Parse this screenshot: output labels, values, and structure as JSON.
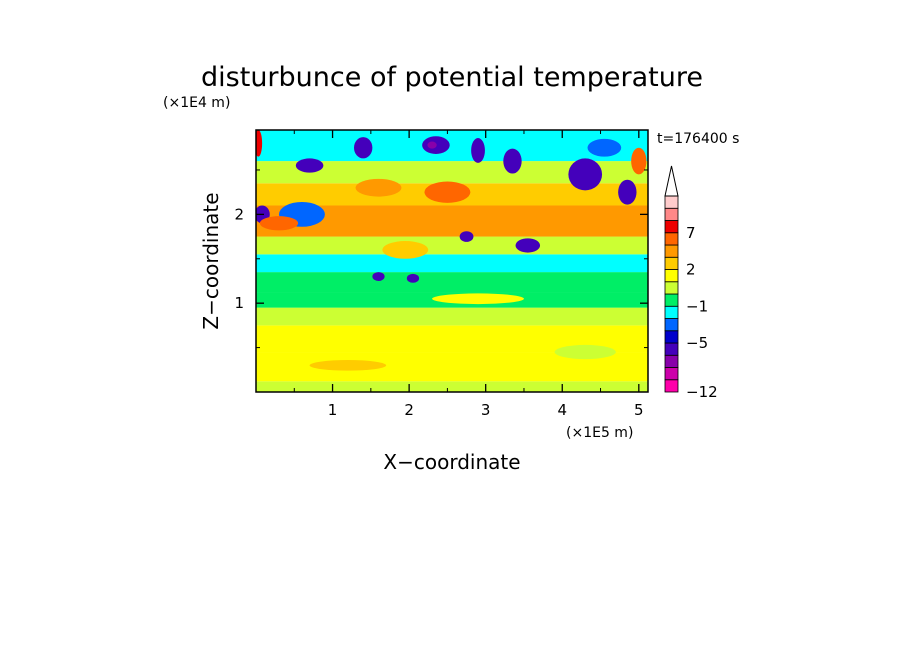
{
  "chart_data": {
    "type": "heatmap",
    "title": "disturbunce of potential temperature",
    "xlabel": "X−coordinate",
    "ylabel": "Z−coordinate",
    "x_unit": "(×1E5 m)",
    "y_unit": "(×1E4 m)",
    "time_label": "t=176400 s",
    "xlim": [
      0,
      5.12
    ],
    "ylim": [
      0,
      2.95
    ],
    "x_ticks": [
      1,
      2,
      3,
      4,
      5
    ],
    "x_tick_labels": [
      "1",
      "2",
      "3",
      "4",
      "5"
    ],
    "y_ticks": [
      1,
      2
    ],
    "y_tick_labels": [
      "1",
      "2"
    ],
    "colorbar": {
      "levels": [
        -12,
        -11,
        -9,
        -7,
        -5,
        -4,
        -3,
        -1,
        0,
        1,
        2,
        3,
        5,
        7,
        9,
        11
      ],
      "tick_values": [
        -12,
        -5,
        -1,
        2,
        7
      ],
      "tick_labels": [
        "−12",
        "−5",
        "−1",
        "2",
        "7"
      ],
      "colors": [
        "#ff00aa",
        "#cc00aa",
        "#8800aa",
        "#4400bb",
        "#0000cc",
        "#0066ff",
        "#00ffff",
        "#00ee66",
        "#ccff33",
        "#ffff00",
        "#ffcc00",
        "#ff9900",
        "#ff6600",
        "#ee0000",
        "#ff8888",
        "#ffcccc"
      ],
      "extend": "max",
      "extend_color": "#ffffff"
    },
    "bands": [
      {
        "z_min": 0.0,
        "z_max": 0.12,
        "value": 0.5
      },
      {
        "z_min": 0.12,
        "z_max": 0.45,
        "value": 1.5
      },
      {
        "z_min": 0.45,
        "z_max": 0.75,
        "value": 1.0
      },
      {
        "z_min": 0.75,
        "z_max": 0.95,
        "value": 0.5
      },
      {
        "z_min": 0.95,
        "z_max": 1.12,
        "value": -0.5
      },
      {
        "z_min": 1.12,
        "z_max": 1.35,
        "value": -0.8
      },
      {
        "z_min": 1.35,
        "z_max": 1.55,
        "value": -1.5
      },
      {
        "z_min": 1.55,
        "z_max": 1.75,
        "value": 0.5
      },
      {
        "z_min": 1.75,
        "z_max": 2.1,
        "value": 4.0
      },
      {
        "z_min": 2.1,
        "z_max": 2.35,
        "value": 2.5
      },
      {
        "z_min": 2.35,
        "z_max": 2.6,
        "value": 0.2
      },
      {
        "z_min": 2.6,
        "z_max": 2.95,
        "value": -1.8
      }
    ],
    "features": [
      {
        "x": 1.4,
        "z": 2.75,
        "rx": 0.12,
        "rz": 0.12,
        "value": -5.5
      },
      {
        "x": 0.7,
        "z": 2.55,
        "rx": 0.18,
        "rz": 0.08,
        "value": -5.5
      },
      {
        "x": 2.35,
        "z": 2.78,
        "rx": 0.18,
        "rz": 0.1,
        "value": -6.5
      },
      {
        "x": 2.3,
        "z": 2.78,
        "rx": 0.06,
        "rz": 0.04,
        "value": -9.0
      },
      {
        "x": 2.9,
        "z": 2.72,
        "rx": 0.09,
        "rz": 0.14,
        "value": -5.5
      },
      {
        "x": 3.35,
        "z": 2.6,
        "rx": 0.12,
        "rz": 0.14,
        "value": -5.5
      },
      {
        "x": 4.3,
        "z": 2.45,
        "rx": 0.22,
        "rz": 0.18,
        "value": -5.5
      },
      {
        "x": 4.85,
        "z": 2.25,
        "rx": 0.12,
        "rz": 0.14,
        "value": -5.5
      },
      {
        "x": 4.55,
        "z": 2.75,
        "rx": 0.22,
        "rz": 0.1,
        "value": -3.5
      },
      {
        "x": 0.08,
        "z": 2.0,
        "rx": 0.1,
        "rz": 0.1,
        "value": -5.5
      },
      {
        "x": 0.6,
        "z": 2.0,
        "rx": 0.3,
        "rz": 0.14,
        "value": -3.5
      },
      {
        "x": 2.75,
        "z": 1.75,
        "rx": 0.09,
        "rz": 0.06,
        "value": -5.5
      },
      {
        "x": 3.55,
        "z": 1.65,
        "rx": 0.16,
        "rz": 0.08,
        "value": -5.5
      },
      {
        "x": 1.6,
        "z": 1.3,
        "rx": 0.08,
        "rz": 0.05,
        "value": -5.5
      },
      {
        "x": 2.05,
        "z": 1.28,
        "rx": 0.08,
        "rz": 0.05,
        "value": -5.5
      },
      {
        "x": 2.5,
        "z": 2.25,
        "rx": 0.3,
        "rz": 0.12,
        "value": 5.5
      },
      {
        "x": 1.6,
        "z": 2.3,
        "rx": 0.3,
        "rz": 0.1,
        "value": 4.5
      },
      {
        "x": 0.3,
        "z": 1.9,
        "rx": 0.25,
        "rz": 0.08,
        "value": 5.5
      },
      {
        "x": 0.03,
        "z": 2.8,
        "rx": 0.05,
        "rz": 0.15,
        "value": 7.5
      },
      {
        "x": 5.0,
        "z": 2.6,
        "rx": 0.1,
        "rz": 0.15,
        "value": 5.5
      },
      {
        "x": 1.95,
        "z": 1.6,
        "rx": 0.3,
        "rz": 0.1,
        "value": 2.5
      },
      {
        "x": 2.9,
        "z": 1.05,
        "rx": 0.6,
        "rz": 0.06,
        "value": 1.5
      },
      {
        "x": 4.3,
        "z": 0.45,
        "rx": 0.4,
        "rz": 0.08,
        "value": 0.5
      },
      {
        "x": 1.2,
        "z": 0.3,
        "rx": 0.5,
        "rz": 0.06,
        "value": 2.5
      }
    ]
  }
}
